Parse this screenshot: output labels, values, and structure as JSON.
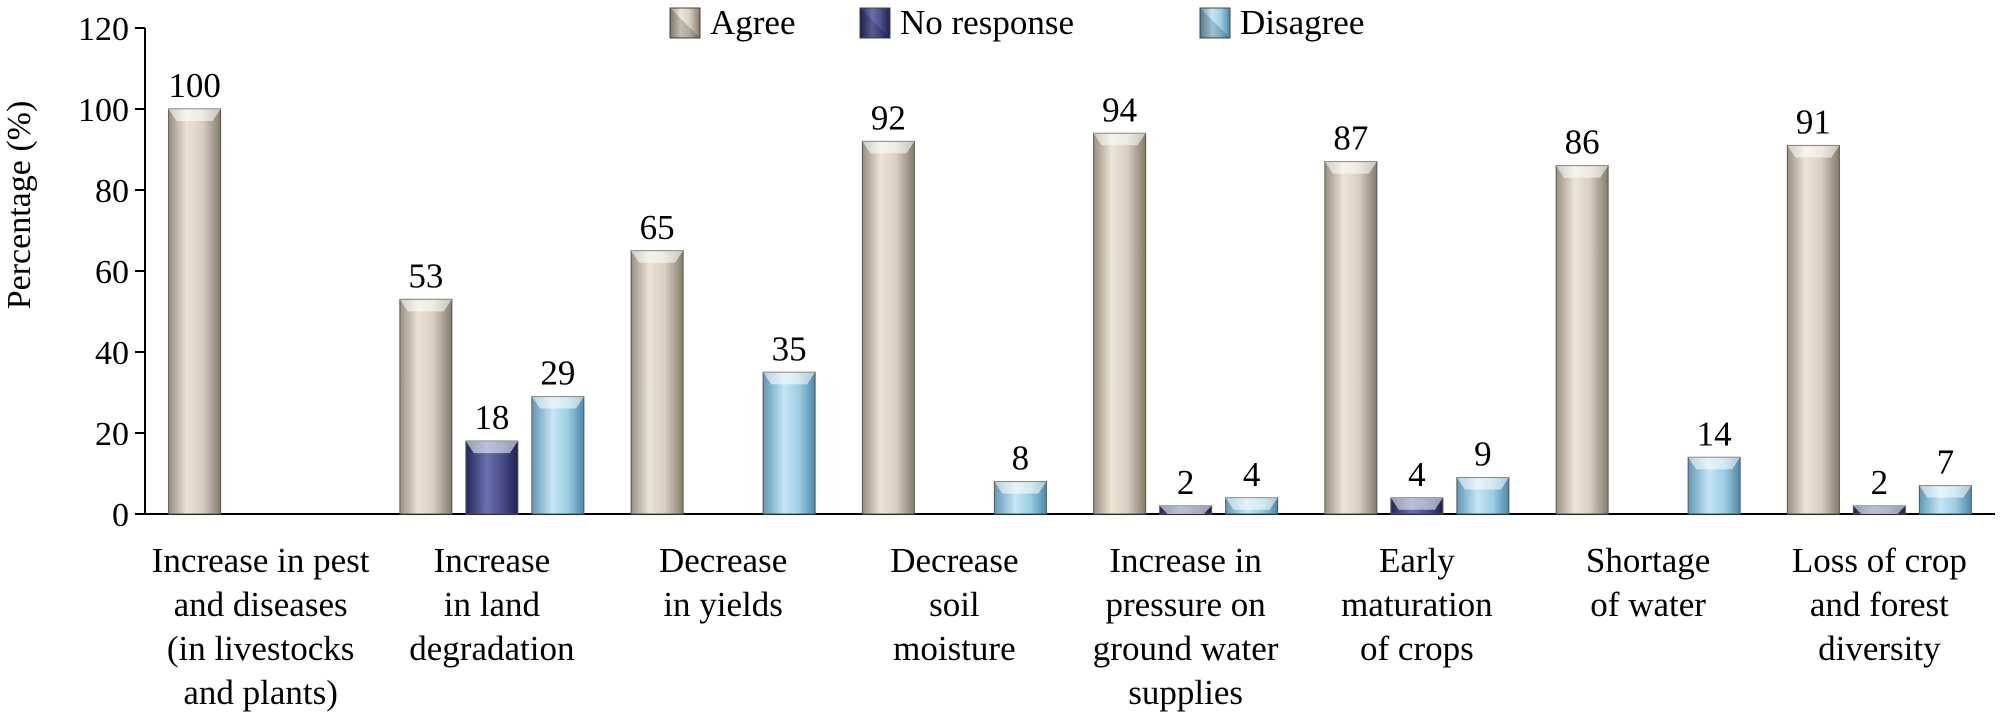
{
  "chart_data": {
    "type": "bar",
    "ylabel": "Percentage (%)",
    "ylim": [
      0,
      120
    ],
    "yticks": [
      0,
      20,
      40,
      60,
      80,
      100,
      120
    ],
    "grid": false,
    "legend_position": "top",
    "categories": [
      [
        "Increase in pest",
        "and diseases",
        "(in livestocks",
        "and plants)"
      ],
      [
        "Increase",
        "in land",
        "degradation"
      ],
      [
        "Decrease",
        "in yields"
      ],
      [
        "Decrease",
        "soil",
        "moisture"
      ],
      [
        "Increase in",
        "pressure on",
        "ground water",
        "supplies"
      ],
      [
        "Early",
        "maturation",
        "of crops"
      ],
      [
        "Shortage",
        "of water"
      ],
      [
        "Loss of crop",
        "and forest",
        "diversity"
      ]
    ],
    "series": [
      {
        "name": "Agree",
        "color": "#d6cbbb",
        "values": [
          100,
          53,
          65,
          92,
          94,
          87,
          86,
          91
        ]
      },
      {
        "name": "No response",
        "color": "#4a4f8c",
        "values": [
          null,
          18,
          null,
          null,
          2,
          4,
          null,
          2
        ]
      },
      {
        "name": "Disagree",
        "color": "#8fc3de",
        "values": [
          null,
          29,
          35,
          8,
          4,
          9,
          14,
          7
        ]
      }
    ]
  }
}
